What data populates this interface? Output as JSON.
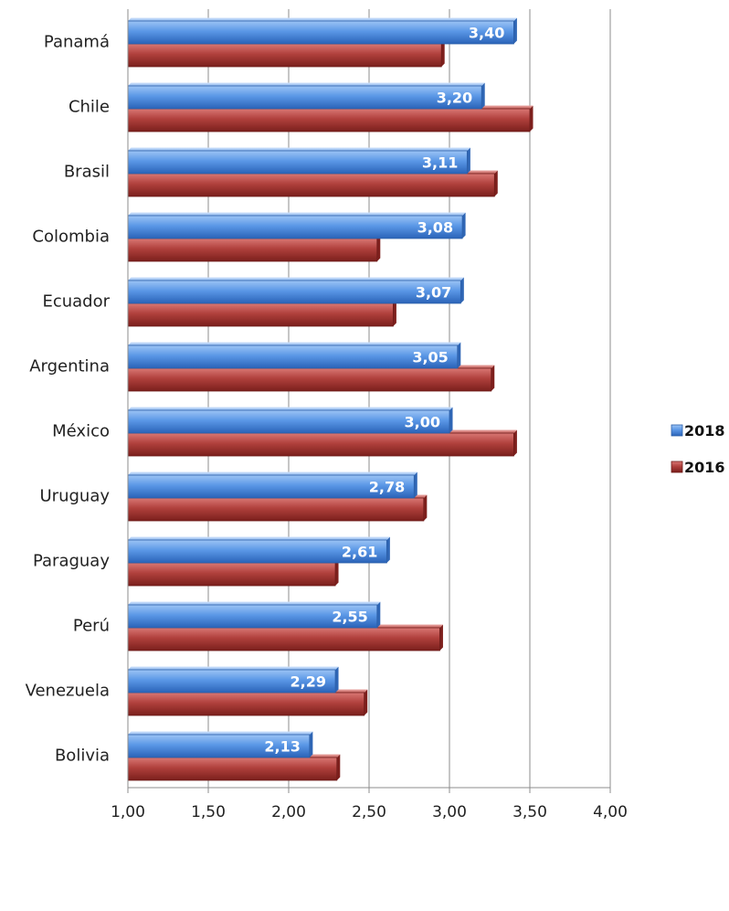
{
  "chart_data": {
    "type": "bar",
    "orientation": "horizontal",
    "categories": [
      "Panamá",
      "Chile",
      "Brasil",
      "Colombia",
      "Ecuador",
      "Argentina",
      "México",
      "Uruguay",
      "Paraguay",
      "Perú",
      "Venezuela",
      "Bolivia"
    ],
    "series": [
      {
        "name": "2018",
        "color": "#4f8fe0",
        "values": [
          3.4,
          3.2,
          3.11,
          3.08,
          3.07,
          3.05,
          3.0,
          2.78,
          2.61,
          2.55,
          2.29,
          2.13
        ],
        "data_labels": [
          "3,40",
          "3,20",
          "3,11",
          "3,08",
          "3,07",
          "3,05",
          "3,00",
          "2,78",
          "2,61",
          "2,55",
          "2,29",
          "2,13"
        ]
      },
      {
        "name": "2016",
        "color": "#b03a36",
        "values": [
          2.95,
          3.5,
          3.28,
          2.55,
          2.65,
          3.26,
          3.4,
          2.84,
          2.29,
          2.94,
          2.47,
          2.3
        ]
      }
    ],
    "xlim": [
      1.0,
      4.0
    ],
    "xticks": [
      1.0,
      1.5,
      2.0,
      2.5,
      3.0,
      3.5,
      4.0
    ],
    "xtick_labels": [
      "1,00",
      "1,50",
      "2,00",
      "2,50",
      "3,00",
      "3,50",
      "4,00"
    ],
    "grid": "vertical",
    "legend": "right",
    "title": "",
    "xlabel": "",
    "ylabel": ""
  }
}
